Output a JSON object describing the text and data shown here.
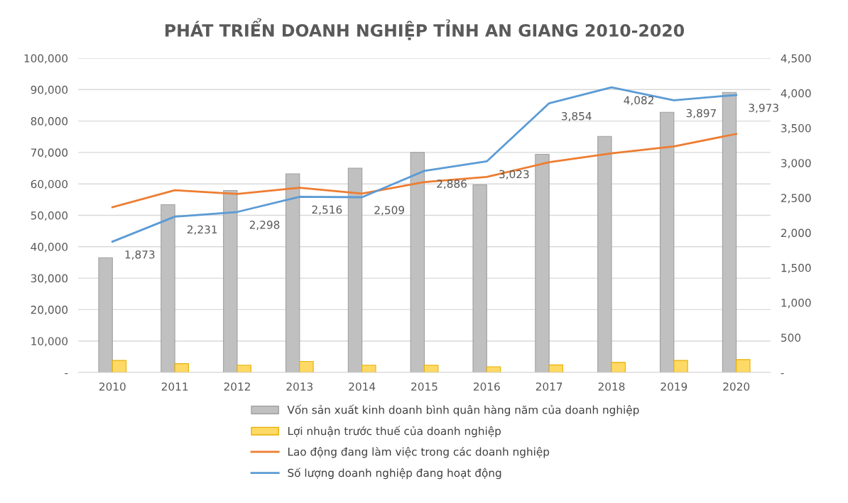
{
  "chart_data": {
    "type": "bar",
    "title": "PHÁT TRIỂN DOANH NGHIỆP TỈNH AN GIANG 2010-2020",
    "categories": [
      "2010",
      "2011",
      "2012",
      "2013",
      "2014",
      "2015",
      "2016",
      "2017",
      "2018",
      "2019",
      "2020"
    ],
    "series": [
      {
        "name": "Vốn sản xuất kinh doanh bình quân hàng năm của doanh nghiệp",
        "color": "#c0c0c0",
        "values": [
          36500,
          53400,
          57900,
          63200,
          65000,
          70000,
          59700,
          69400,
          75100,
          82800,
          89100
        ]
      },
      {
        "name": "Lợi nhuận trước thuế của doanh nghiệp",
        "color": "#ffd966",
        "values": [
          3800,
          2800,
          2300,
          3500,
          2300,
          2300,
          1800,
          2400,
          3200,
          3800,
          4100
        ]
      },
      {
        "name": "Lao động đang làm việc trong các doanh nghiệp",
        "type": "line",
        "color": "#ed7d31",
        "values": [
          52600,
          58000,
          56800,
          58800,
          56900,
          60600,
          62200,
          66900,
          69700,
          71900,
          75900
        ]
      },
      {
        "name": "Số lượng doanh nghiệp đang hoạt động",
        "type": "line",
        "color": "#5b9bd5",
        "axis": "y2",
        "values": [
          1873,
          2231,
          2298,
          2516,
          2509,
          2886,
          3023,
          3854,
          4082,
          3897,
          3973
        ],
        "value_labels": [
          "1,873",
          "2,231",
          "2,298",
          "2,516",
          "2,509",
          "2,886",
          "3,023",
          "3,854",
          "4,082",
          "3,897",
          "3,973"
        ]
      }
    ],
    "ylim": [
      0,
      100000
    ],
    "yticks": [
      {
        "value": 0,
        "label": "-"
      },
      {
        "value": 10000,
        "label": "10,000"
      },
      {
        "value": 20000,
        "label": "20,000"
      },
      {
        "value": 30000,
        "label": "30,000"
      },
      {
        "value": 40000,
        "label": "40,000"
      },
      {
        "value": 50000,
        "label": "50,000"
      },
      {
        "value": 60000,
        "label": "60,000"
      },
      {
        "value": 70000,
        "label": "70,000"
      },
      {
        "value": 80000,
        "label": "80,000"
      },
      {
        "value": 90000,
        "label": "90,000"
      },
      {
        "value": 100000,
        "label": "100,000"
      }
    ],
    "y2lim": [
      0,
      4500
    ],
    "y2ticks": [
      {
        "value": 0,
        "label": "-"
      },
      {
        "value": 500,
        "label": "500"
      },
      {
        "value": 1000,
        "label": "1,000"
      },
      {
        "value": 1500,
        "label": "1,500"
      },
      {
        "value": 2000,
        "label": "2,000"
      },
      {
        "value": 2500,
        "label": "2,500"
      },
      {
        "value": 3000,
        "label": "3,000"
      },
      {
        "value": 3500,
        "label": "3,500"
      },
      {
        "value": 4000,
        "label": "4,000"
      },
      {
        "value": 4500,
        "label": "4,500"
      }
    ],
    "grid": "y",
    "legend": "bottom",
    "marker": "none",
    "line_style": "solid"
  }
}
